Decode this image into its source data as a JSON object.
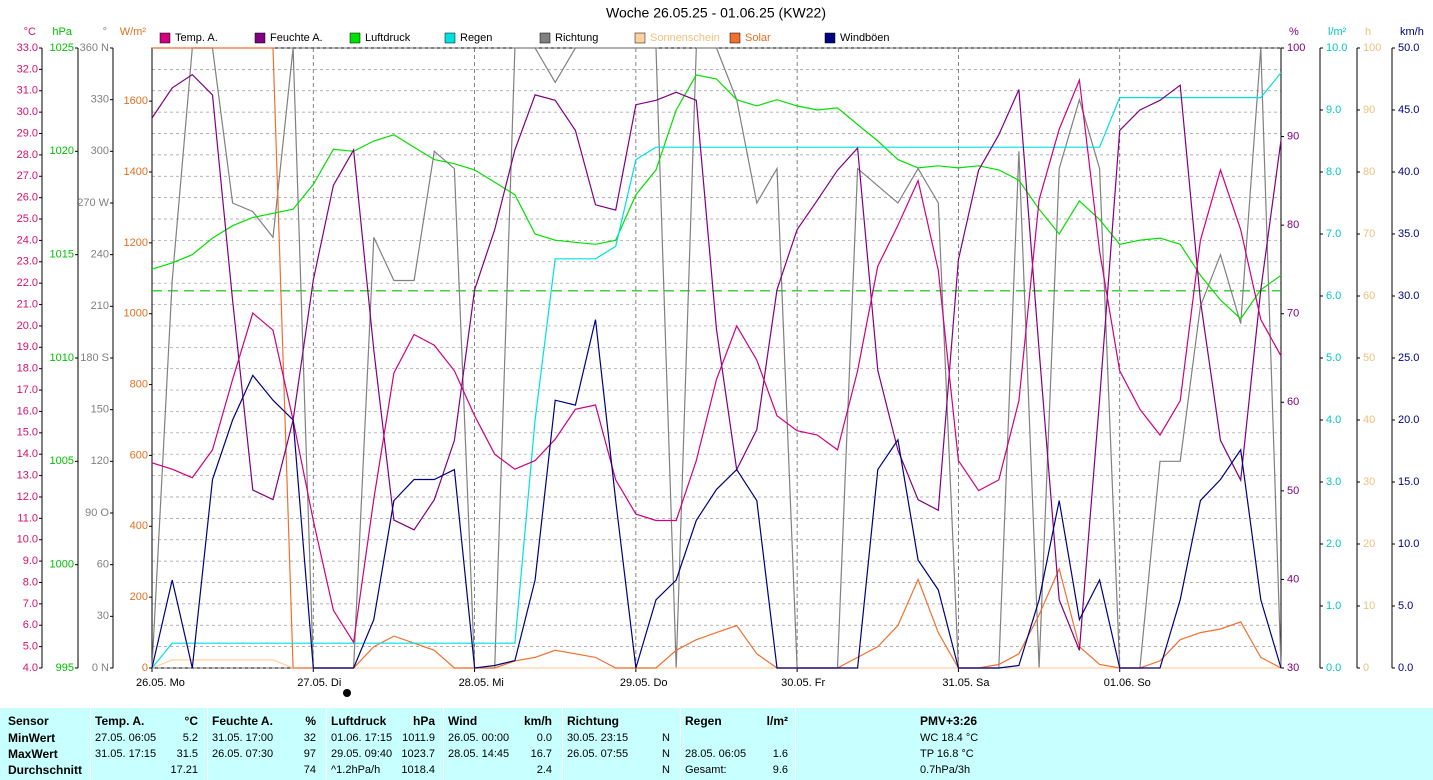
{
  "chart_data": {
    "type": "line",
    "title": "Woche 26.05.25 - 01.06.25 (KW22)",
    "grid": true,
    "x": [
      0,
      3,
      6,
      9,
      12,
      15,
      18,
      21,
      24,
      27,
      30,
      33,
      36,
      39,
      42,
      45,
      48,
      51,
      54,
      57,
      60,
      63,
      66,
      69,
      72,
      75,
      78,
      81,
      84,
      87,
      90,
      93,
      96,
      99,
      102,
      105,
      108,
      111,
      114,
      117,
      120,
      123,
      126,
      129,
      132,
      135,
      138,
      141,
      144,
      147,
      150,
      153,
      156,
      159,
      162,
      165,
      168
    ],
    "xlim": [
      0,
      168
    ],
    "xticks": [
      {
        "value": 0,
        "label": "26.05. Mo"
      },
      {
        "value": 24,
        "label": "27.05. Di"
      },
      {
        "value": 48,
        "label": "28.05. Mi"
      },
      {
        "value": 72,
        "label": "29.05. Do"
      },
      {
        "value": 96,
        "label": "30.05. Fr"
      },
      {
        "value": 120,
        "label": "31.05. Sa"
      },
      {
        "value": 144,
        "label": "01.06. So"
      }
    ],
    "axes": [
      {
        "id": "temp",
        "unit": "°C",
        "side": "left",
        "color": "#d8106f",
        "lim": [
          4,
          33
        ],
        "ticks": [
          {
            "value": 4,
            "label": "4.0"
          },
          {
            "value": 5,
            "label": "5.0"
          },
          {
            "value": 6,
            "label": "6.0"
          },
          {
            "value": 7,
            "label": "7.0"
          },
          {
            "value": 8,
            "label": "8.0"
          },
          {
            "value": 9,
            "label": "9.0"
          },
          {
            "value": 10,
            "label": "10.0"
          },
          {
            "value": 11,
            "label": "11.0"
          },
          {
            "value": 12,
            "label": "12.0"
          },
          {
            "value": 13,
            "label": "13.0"
          },
          {
            "value": 14,
            "label": "14.0"
          },
          {
            "value": 15,
            "label": "15.0"
          },
          {
            "value": 16,
            "label": "16.0"
          },
          {
            "value": 17,
            "label": "17.0"
          },
          {
            "value": 18,
            "label": "18.0"
          },
          {
            "value": 19,
            "label": "19.0"
          },
          {
            "value": 20,
            "label": "20.0"
          },
          {
            "value": 21,
            "label": "21.0"
          },
          {
            "value": 22,
            "label": "22.0"
          },
          {
            "value": 23,
            "label": "23.0"
          },
          {
            "value": 24,
            "label": "24.0"
          },
          {
            "value": 25,
            "label": "25.0"
          },
          {
            "value": 26,
            "label": "26.0"
          },
          {
            "value": 27,
            "label": "27.0"
          },
          {
            "value": 28,
            "label": "28.0"
          },
          {
            "value": 29,
            "label": "29.0"
          },
          {
            "value": 30,
            "label": "30.0"
          },
          {
            "value": 31,
            "label": "31.0"
          },
          {
            "value": 32,
            "label": "32.0"
          },
          {
            "value": 33,
            "label": "33.0"
          }
        ]
      },
      {
        "id": "pressure",
        "unit": "hPa",
        "side": "left",
        "color": "#00c000",
        "lim": [
          995,
          1025
        ],
        "ticks": [
          995,
          1000,
          1005,
          1010,
          1015,
          1020,
          1025
        ]
      },
      {
        "id": "direction",
        "unit": "°",
        "side": "left",
        "color": "#808080",
        "lim": [
          0,
          360
        ],
        "ticks": [
          {
            "value": 0,
            "label": "0 N"
          },
          30,
          60,
          {
            "value": 90,
            "label": "90 O"
          },
          120,
          150,
          {
            "value": 180,
            "label": "180 S"
          },
          210,
          240,
          {
            "value": 270,
            "label": "270 W"
          },
          300,
          330,
          {
            "value": 360,
            "label": "360 N"
          }
        ]
      },
      {
        "id": "solar",
        "unit": "W/m²",
        "side": "left",
        "color": "#e07020",
        "lim": [
          0,
          1750
        ],
        "ticks": [
          0,
          200,
          400,
          600,
          800,
          1000,
          1200,
          1400,
          1600
        ]
      },
      {
        "id": "humidity",
        "unit": "%",
        "side": "right",
        "color": "#800080",
        "lim": [
          30,
          100
        ],
        "ticks": [
          30,
          40,
          50,
          60,
          70,
          80,
          90,
          100
        ]
      },
      {
        "id": "rain",
        "unit": "l/m²",
        "side": "right",
        "color": "#00c8c8",
        "lim": [
          0,
          10
        ],
        "ticks": [
          {
            "value": 0,
            "label": "0.0"
          },
          {
            "value": 1,
            "label": "1.0"
          },
          {
            "value": 2,
            "label": "2.0"
          },
          {
            "value": 3,
            "label": "3.0"
          },
          {
            "value": 4,
            "label": "4.0"
          },
          {
            "value": 5,
            "label": "5.0"
          },
          {
            "value": 6,
            "label": "6.0"
          },
          {
            "value": 7,
            "label": "7.0"
          },
          {
            "value": 8,
            "label": "8.0"
          },
          {
            "value": 9,
            "label": "9.0"
          },
          {
            "value": 10,
            "label": "10.0"
          }
        ]
      },
      {
        "id": "sun",
        "unit": "h",
        "side": "right",
        "color": "#f0c080",
        "lim": [
          0,
          100
        ],
        "ticks": [
          0,
          10,
          20,
          30,
          40,
          50,
          60,
          70,
          80,
          90,
          100
        ]
      },
      {
        "id": "wind",
        "unit": "km/h",
        "side": "right",
        "color": "#000080",
        "lim": [
          0,
          50
        ],
        "ticks": [
          {
            "value": 0,
            "label": "0.0"
          },
          {
            "value": 5,
            "label": "5.0"
          },
          {
            "value": 10,
            "label": "10.0"
          },
          {
            "value": 15,
            "label": "15.0"
          },
          {
            "value": 20,
            "label": "20.0"
          },
          {
            "value": 25,
            "label": "25.0"
          },
          {
            "value": 30,
            "label": "30.0"
          },
          {
            "value": 35,
            "label": "35.0"
          },
          {
            "value": 40,
            "label": "40.0"
          },
          {
            "value": 45,
            "label": "45.0"
          },
          {
            "value": 50,
            "label": "50.0"
          }
        ]
      }
    ],
    "reference_lines": [
      {
        "axis": "pressure",
        "value": 1013.25,
        "color": "#00c000"
      }
    ],
    "series": [
      {
        "name": "Temp. A.",
        "color": "#d0007f",
        "axis": "temp",
        "values": [
          13.6,
          13.3,
          12.9,
          14.2,
          17.5,
          20.6,
          19.8,
          15.6,
          10.9,
          6.7,
          5.2,
          11.9,
          17.8,
          19.6,
          19.1,
          17.9,
          15.8,
          14.0,
          13.3,
          13.7,
          14.7,
          16.1,
          16.3,
          12.8,
          11.2,
          10.9,
          10.9,
          13.7,
          17.5,
          20.0,
          18.4,
          15.8,
          15.1,
          14.9,
          14.2,
          17.9,
          22.8,
          24.7,
          26.8,
          22.6,
          13.7,
          12.3,
          12.8,
          16.5,
          25.9,
          29.2,
          31.5,
          23.5,
          17.9,
          16.1,
          14.9,
          16.5,
          24.0,
          27.3,
          24.5,
          20.3,
          18.6
        ]
      },
      {
        "name": "Feuchte A.",
        "color": "#800080",
        "axis": "humidity",
        "values": [
          92.1,
          95.5,
          97,
          94.7,
          71.5,
          50.1,
          49.0,
          58.0,
          73.8,
          84.5,
          88.5,
          65.9,
          46.7,
          45.6,
          49.0,
          55.7,
          72.7,
          79.5,
          88.5,
          94.7,
          94.1,
          90.7,
          82.3,
          81.7,
          93.6,
          94.1,
          95.0,
          94.1,
          68.2,
          52.4,
          56.9,
          72.7,
          79.5,
          82.8,
          86.2,
          88.7,
          63.6,
          54.6,
          49.0,
          47.8,
          76.1,
          86.2,
          90.2,
          95.3,
          65.9,
          37.7,
          32,
          60.3,
          90.7,
          93.0,
          94.1,
          95.8,
          71.5,
          55.7,
          51.2,
          72.7,
          89.6
        ]
      },
      {
        "name": "Luftdruck",
        "color": "#00e000",
        "axis": "pressure",
        "values": [
          1014.3,
          1014.6,
          1015.0,
          1015.8,
          1016.4,
          1016.8,
          1017.0,
          1017.2,
          1018.4,
          1020.1,
          1020.0,
          1020.5,
          1020.8,
          1020.2,
          1019.6,
          1019.4,
          1019.1,
          1018.5,
          1017.9,
          1016.0,
          1015.7,
          1015.6,
          1015.5,
          1015.7,
          1017.9,
          1019.1,
          1022.0,
          1023.7,
          1023.5,
          1022.5,
          1022.2,
          1022.5,
          1022.2,
          1022.0,
          1022.1,
          1021.3,
          1020.5,
          1019.6,
          1019.2,
          1019.3,
          1019.2,
          1019.3,
          1019.1,
          1018.6,
          1017.2,
          1016.0,
          1017.6,
          1016.7,
          1015.5,
          1015.7,
          1015.8,
          1015.5,
          1014.0,
          1012.8,
          1011.9,
          1013.3,
          1014.0
        ]
      },
      {
        "name": "Regen",
        "color": "#00e0e0",
        "axis": "rain",
        "values": [
          0,
          0.4,
          0.4,
          0.4,
          0.4,
          0.4,
          0.4,
          0.4,
          0.4,
          0.4,
          0.4,
          0.4,
          0.4,
          0.4,
          0.4,
          0.4,
          0.4,
          0.4,
          0.4,
          4.0,
          6.6,
          6.6,
          6.6,
          6.8,
          8.2,
          8.4,
          8.4,
          8.4,
          8.4,
          8.4,
          8.4,
          8.4,
          8.4,
          8.4,
          8.4,
          8.4,
          8.4,
          8.4,
          8.4,
          8.4,
          8.4,
          8.4,
          8.4,
          8.4,
          8.4,
          8.4,
          8.4,
          8.4,
          9.2,
          9.2,
          9.2,
          9.2,
          9.2,
          9.2,
          9.2,
          9.2,
          9.6
        ]
      },
      {
        "name": "Richtung",
        "color": "#808080",
        "axis": "direction",
        "values": [
          0,
          225,
          360,
          360,
          270,
          265,
          250,
          360,
          0,
          0,
          0,
          250,
          225,
          225,
          300,
          290,
          0,
          0,
          360,
          360,
          340,
          360,
          360,
          360,
          360,
          360,
          0,
          360,
          360,
          330,
          270,
          290,
          0,
          0,
          0,
          290,
          280,
          270,
          290,
          270,
          0,
          0,
          0,
          300,
          0,
          290,
          330,
          290,
          0,
          0,
          120,
          120,
          210,
          240,
          200,
          360,
          0
        ]
      },
      {
        "name": "Sonnenschein",
        "color": "#ffd0a0",
        "axis": "sun",
        "values": [
          0,
          1.3,
          1.3,
          1.3,
          1.3,
          1.3,
          1.3,
          0,
          0,
          0,
          0,
          0,
          0,
          0,
          0,
          0,
          0,
          0,
          0,
          0,
          0,
          0,
          0,
          0,
          0,
          0,
          0,
          0,
          0,
          0,
          0,
          0,
          0,
          0,
          0,
          0,
          0,
          0,
          0,
          0,
          0,
          0,
          0,
          0,
          0,
          0,
          0,
          0,
          0,
          0,
          0,
          0,
          0,
          0,
          0,
          0,
          0
        ]
      },
      {
        "name": "Solar",
        "color": "#f07030",
        "axis": "solar",
        "values": [
          1750,
          1750,
          1750,
          1750,
          1750,
          1750,
          1750,
          0,
          0,
          0,
          0,
          60,
          90,
          70,
          50,
          0,
          0,
          0,
          20,
          30,
          50,
          40,
          30,
          0,
          0,
          0,
          50,
          80,
          100,
          120,
          40,
          0,
          0,
          0,
          0,
          30,
          60,
          120,
          250,
          100,
          0,
          0,
          10,
          40,
          150,
          280,
          60,
          10,
          0,
          0,
          20,
          80,
          100,
          110,
          130,
          30,
          0
        ]
      },
      {
        "name": "Windböen",
        "color": "#000080",
        "axis": "wind",
        "values": [
          0,
          7.1,
          0,
          15.2,
          20.0,
          23.6,
          21.6,
          20.0,
          0,
          0,
          0,
          3.9,
          13.5,
          15.2,
          15.2,
          16.0,
          0,
          0.2,
          0.6,
          7.1,
          21.6,
          21.2,
          28.1,
          13.5,
          0,
          5.5,
          7.1,
          11.9,
          14.4,
          16.0,
          13.5,
          0,
          0,
          0,
          0,
          0,
          16.0,
          18.4,
          8.7,
          6.3,
          0,
          0,
          0,
          0.2,
          5.5,
          13.5,
          3.9,
          7.1,
          0,
          0,
          0,
          5.5,
          13.5,
          15.2,
          17.6,
          5.5,
          0
        ]
      }
    ]
  },
  "table": {
    "columns": [
      {
        "name": "Sensor"
      },
      {
        "name": "Temp. A.",
        "unit": "°C"
      },
      {
        "name": "Feuchte A.",
        "unit": "%"
      },
      {
        "name": "Luftdruck",
        "unit": "hPa"
      },
      {
        "name": "Wind",
        "unit": "km/h"
      },
      {
        "name": "Richtung"
      },
      {
        "name": "Regen",
        "unit": "l/m²"
      },
      {
        "name": "PMV+3:26"
      }
    ],
    "rows": [
      {
        "label": "MinWert",
        "cells": [
          {
            "time": "27.05. 06:05",
            "value": "5.2"
          },
          {
            "time": "31.05. 17:00",
            "value": "32"
          },
          {
            "time": "01.06. 17:15",
            "value": "1011.9"
          },
          {
            "time": "26.05. 00:00",
            "value": "0.0"
          },
          {
            "time": "30.05. 23:15",
            "value": "N"
          },
          {},
          {
            "text": "WC 18.4 °C"
          }
        ]
      },
      {
        "label": "MaxWert",
        "cells": [
          {
            "time": "31.05. 17:15",
            "value": "31.5"
          },
          {
            "time": "26.05. 07:30",
            "value": "97"
          },
          {
            "time": "29.05. 09:40",
            "value": "1023.7"
          },
          {
            "time": "28.05. 14:45",
            "value": "16.7"
          },
          {
            "time": "26.05. 07:55",
            "value": "N"
          },
          {
            "time": "28.05. 06:05",
            "value": "1.6"
          },
          {
            "text": "TP 16.8 °C"
          }
        ]
      },
      {
        "label": "Durchschnitt",
        "cells": [
          {
            "value": "17.21"
          },
          {
            "value": "74"
          },
          {
            "time": "^1.2hPa/h",
            "value": "1018.4"
          },
          {
            "value": "2.4"
          },
          {
            "value": "N"
          },
          {
            "time": "Gesamt:",
            "value": "9.6"
          },
          {
            "text": "0.7hPa/3h"
          }
        ]
      }
    ]
  }
}
